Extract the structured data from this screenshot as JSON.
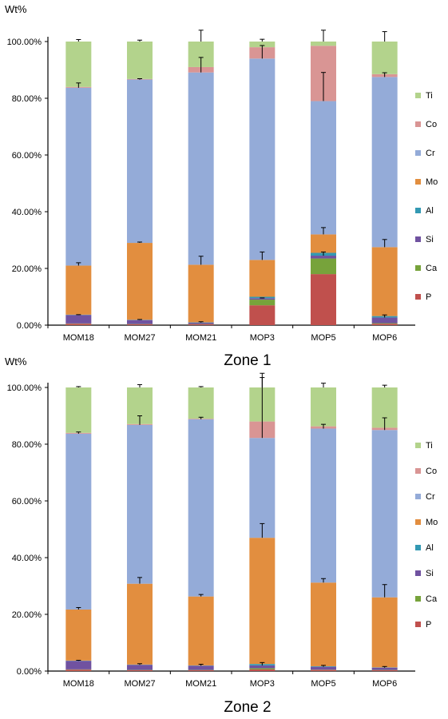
{
  "chart_data": [
    {
      "type": "bar",
      "stacked": true,
      "title": "Zone 1",
      "ylabel": "Wt%",
      "ylim": [
        0,
        100
      ],
      "y_ticks": [
        "0.00%",
        "20.00%",
        "40.00%",
        "60.00%",
        "80.00%",
        "100.00%"
      ],
      "legend_position": "right",
      "categories": [
        "MOM18",
        "MOM27",
        "MOM21",
        "MOP3",
        "MOP5",
        "MOP6"
      ],
      "series": [
        {
          "name": "P",
          "color": "#c0504d",
          "values": [
            0.5,
            0.3,
            0.3,
            7.0,
            18.0,
            0.5
          ]
        },
        {
          "name": "Ca",
          "color": "#77a33b",
          "values": [
            0.1,
            0.1,
            0.1,
            2.0,
            5.5,
            0.2
          ]
        },
        {
          "name": "Si",
          "color": "#7052a0",
          "values": [
            3.0,
            1.4,
            0.5,
            0.5,
            1.0,
            2.0
          ]
        },
        {
          "name": "Al",
          "color": "#3399b3",
          "values": [
            0.1,
            0.1,
            0.1,
            0.5,
            1.0,
            0.5
          ]
        },
        {
          "name": "Mo",
          "color": "#e28e3f",
          "values": [
            17.3,
            27.1,
            20.3,
            13.0,
            6.5,
            24.3
          ]
        },
        {
          "name": "Cr",
          "color": "#94abd8",
          "values": [
            62.7,
            57.6,
            67.8,
            71.0,
            47.0,
            60.0
          ]
        },
        {
          "name": "Co",
          "color": "#d99594",
          "values": [
            0.3,
            0.2,
            1.9,
            4.0,
            19.5,
            1.0
          ]
        },
        {
          "name": "Ti",
          "color": "#b3d38c",
          "values": [
            16.0,
            13.2,
            9.0,
            2.0,
            1.5,
            11.5
          ]
        }
      ],
      "error_tops": {
        "Si": [
          3.7,
          2.0,
          1.2,
          9.6,
          25.8,
          3.6
        ],
        "Mo": [
          22.0,
          29.3,
          24.3,
          25.8,
          34.4,
          30.2
        ],
        "Cr": [
          85.4,
          86.9,
          94.4,
          98.6,
          89.1,
          89.0
        ],
        "Ti": [
          100.7,
          100.5,
          104.0,
          100.8,
          104.0,
          103.5
        ]
      }
    },
    {
      "type": "bar",
      "stacked": true,
      "title": "Zone 2",
      "ylabel": "Wt%",
      "ylim": [
        0,
        100
      ],
      "y_ticks": [
        "0.00%",
        "20.00%",
        "40.00%",
        "60.00%",
        "80.00%",
        "100.00%"
      ],
      "legend_position": "right",
      "categories": [
        "MOM18",
        "MOM27",
        "MOM21",
        "MOP3",
        "MOP5",
        "MOP6"
      ],
      "series": [
        {
          "name": "P",
          "color": "#c0504d",
          "values": [
            0.5,
            0.3,
            0.3,
            0.6,
            0.4,
            0.3
          ]
        },
        {
          "name": "Ca",
          "color": "#77a33b",
          "values": [
            0.1,
            0.1,
            0.1,
            0.4,
            0.1,
            0.1
          ]
        },
        {
          "name": "Si",
          "color": "#7052a0",
          "values": [
            3.0,
            1.8,
            1.5,
            1.0,
            1.0,
            0.8
          ]
        },
        {
          "name": "Al",
          "color": "#3399b3",
          "values": [
            0.1,
            0.1,
            0.1,
            0.5,
            0.2,
            0.1
          ]
        },
        {
          "name": "Mo",
          "color": "#e28e3f",
          "values": [
            18.0,
            28.5,
            24.3,
            44.5,
            29.5,
            24.7
          ]
        },
        {
          "name": "Cr",
          "color": "#94abd8",
          "values": [
            62.0,
            56.0,
            62.5,
            35.2,
            54.3,
            59.0
          ]
        },
        {
          "name": "Co",
          "color": "#d99594",
          "values": [
            0.3,
            0.3,
            0.2,
            5.8,
            0.8,
            0.8
          ]
        },
        {
          "name": "Ti",
          "color": "#b3d38c",
          "values": [
            16.0,
            12.9,
            11.0,
            12.0,
            13.7,
            14.2
          ]
        }
      ],
      "error_tops": {
        "Si": [
          3.8,
          2.6,
          2.4,
          3.0,
          2.0,
          1.6
        ],
        "Mo": [
          22.4,
          33.0,
          27.0,
          52.0,
          32.6,
          30.5
        ],
        "Cr": [
          84.3,
          90.0,
          89.5,
          105.0,
          87.0,
          89.3
        ],
        "Ti": [
          100.3,
          101.0,
          100.3,
          103.5,
          101.5,
          100.8
        ]
      }
    }
  ]
}
